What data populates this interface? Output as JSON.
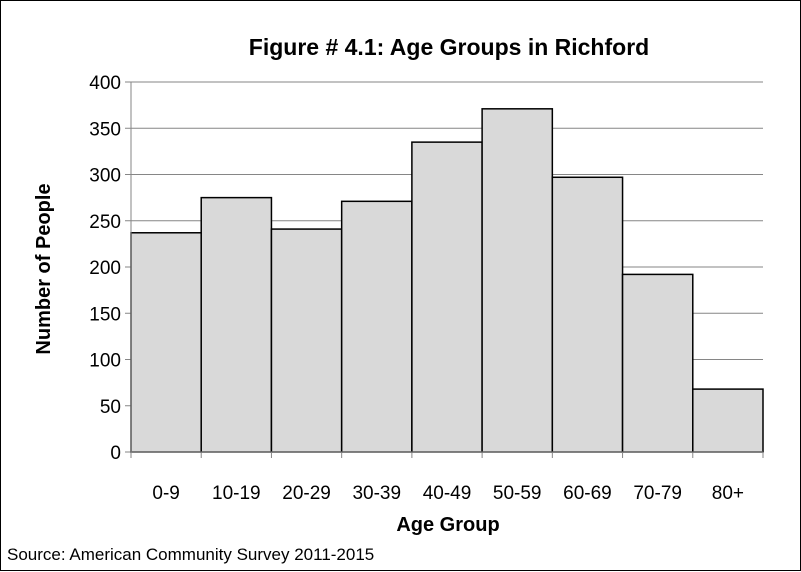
{
  "chart_data": {
    "type": "bar",
    "title": "Figure # 4.1: Age Groups in Richford",
    "xlabel": "Age Group",
    "ylabel": "Number of People",
    "categories": [
      "0-9",
      "10-19",
      "20-29",
      "30-39",
      "40-49",
      "50-59",
      "60-69",
      "70-79",
      "80+"
    ],
    "values": [
      237,
      275,
      241,
      271,
      335,
      371,
      297,
      192,
      68
    ],
    "ylim": [
      0,
      400
    ],
    "yticks": [
      0,
      50,
      100,
      150,
      200,
      250,
      300,
      350,
      400
    ],
    "grid": true,
    "legend": "none",
    "bar_color": "#d9d9d9",
    "bar_edge_color": "#000000",
    "source": "Source: American Community Survey 2011-2015"
  }
}
